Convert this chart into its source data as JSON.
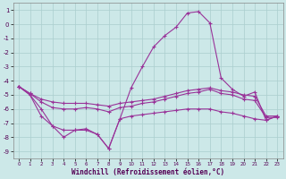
{
  "xlabel": "Windchill (Refroidissement éolien,°C)",
  "bg_color": "#cce8e8",
  "grid_color": "#aacece",
  "line_color": "#993399",
  "ylim": [
    -9.5,
    1.5
  ],
  "xlim": [
    -0.5,
    23.5
  ],
  "yticks": [
    1,
    0,
    -1,
    -2,
    -3,
    -4,
    -5,
    -6,
    -7,
    -8,
    -9
  ],
  "xticks": [
    0,
    1,
    2,
    3,
    4,
    5,
    6,
    7,
    8,
    9,
    10,
    11,
    12,
    13,
    14,
    15,
    16,
    17,
    18,
    19,
    20,
    21,
    22,
    23
  ],
  "series": [
    {
      "x": [
        0,
        1,
        2,
        3,
        4,
        5,
        6,
        7,
        8,
        9,
        10,
        11,
        12,
        13,
        14,
        15,
        16,
        17,
        18,
        19,
        20,
        21,
        22,
        23
      ],
      "y": [
        -4.4,
        -5.0,
        -6.0,
        -7.2,
        -8.0,
        -7.5,
        -7.4,
        -7.8,
        -8.8,
        -6.7,
        -4.5,
        -3.0,
        -1.6,
        -0.8,
        -0.2,
        0.8,
        0.9,
        0.1,
        -3.8,
        -4.6,
        -5.1,
        -4.8,
        -6.8,
        -6.5
      ]
    },
    {
      "x": [
        0,
        1,
        2,
        3,
        4,
        5,
        6,
        7,
        8,
        9,
        10,
        11,
        12,
        13,
        14,
        15,
        16,
        17,
        18,
        19,
        20,
        21,
        22,
        23
      ],
      "y": [
        -4.4,
        -4.9,
        -5.3,
        -5.5,
        -5.6,
        -5.6,
        -5.6,
        -5.7,
        -5.8,
        -5.6,
        -5.5,
        -5.4,
        -5.3,
        -5.1,
        -4.9,
        -4.7,
        -4.6,
        -4.5,
        -4.7,
        -4.8,
        -5.0,
        -5.1,
        -6.5,
        -6.5
      ]
    },
    {
      "x": [
        0,
        1,
        2,
        3,
        4,
        5,
        6,
        7,
        8,
        9,
        10,
        11,
        12,
        13,
        14,
        15,
        16,
        17,
        18,
        19,
        20,
        21,
        22,
        23
      ],
      "y": [
        -4.4,
        -4.9,
        -5.5,
        -5.9,
        -6.0,
        -6.0,
        -5.9,
        -6.0,
        -6.2,
        -5.9,
        -5.8,
        -5.6,
        -5.5,
        -5.3,
        -5.1,
        -4.9,
        -4.8,
        -4.6,
        -4.9,
        -5.0,
        -5.3,
        -5.4,
        -6.6,
        -6.6
      ]
    },
    {
      "x": [
        0,
        1,
        2,
        3,
        4,
        5,
        6,
        7,
        8,
        9,
        10,
        11,
        12,
        13,
        14,
        15,
        16,
        17,
        18,
        19,
        20,
        21,
        22,
        23
      ],
      "y": [
        -4.4,
        -5.0,
        -6.5,
        -7.2,
        -7.5,
        -7.5,
        -7.5,
        -7.8,
        -8.8,
        -6.7,
        -6.5,
        -6.4,
        -6.3,
        -6.2,
        -6.1,
        -6.0,
        -6.0,
        -6.0,
        -6.2,
        -6.3,
        -6.5,
        -6.7,
        -6.8,
        -6.5
      ]
    }
  ]
}
